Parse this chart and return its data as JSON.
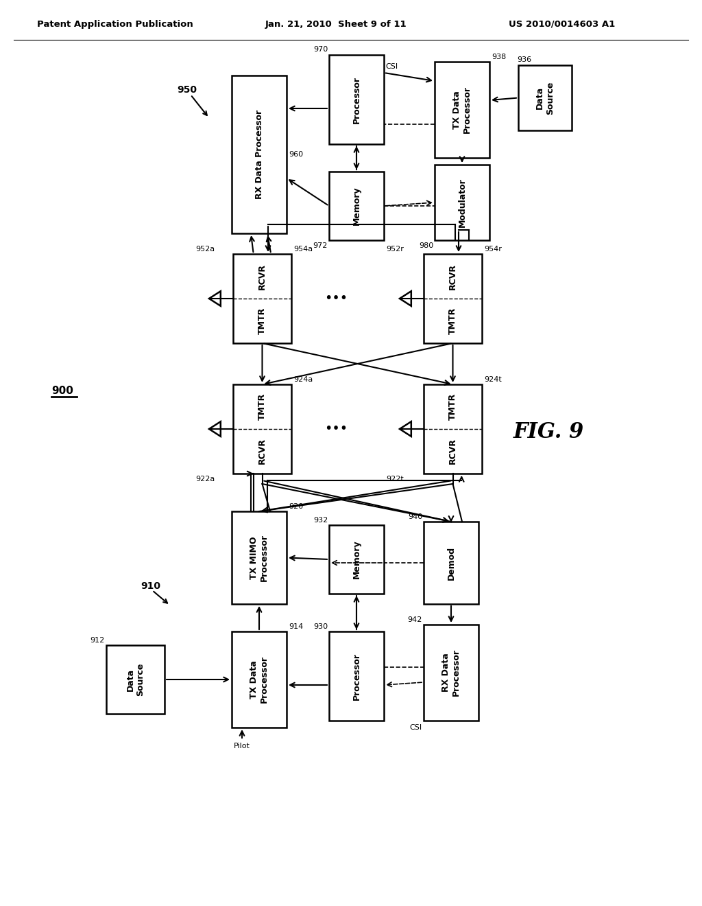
{
  "header_left": "Patent Application Publication",
  "header_center": "Jan. 21, 2010  Sheet 9 of 11",
  "header_right": "US 2010/0014603 A1",
  "fig_label": "FIG. 9",
  "bg_color": "#ffffff"
}
